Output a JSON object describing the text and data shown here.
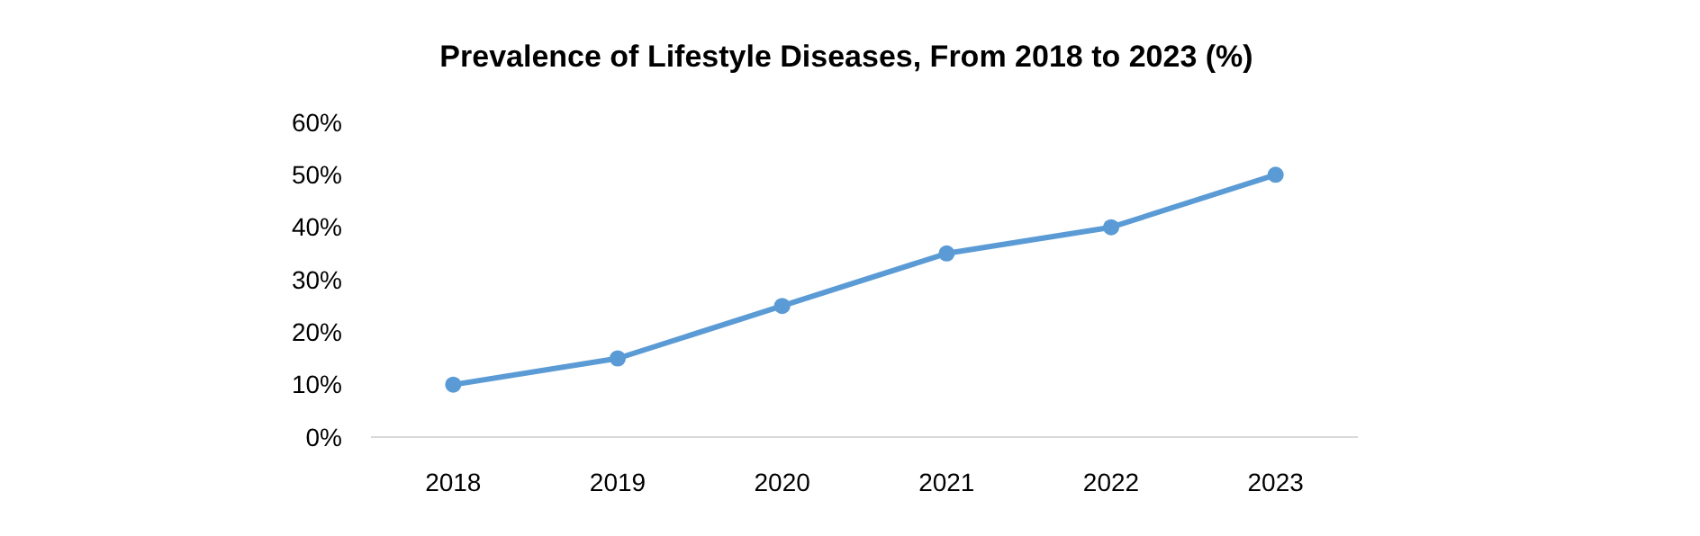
{
  "chart_data": {
    "type": "line",
    "title": "Prevalence of Lifestyle Diseases, From 2018 to 2023 (%)",
    "categories": [
      "2018",
      "2019",
      "2020",
      "2021",
      "2022",
      "2023"
    ],
    "series": [
      {
        "color": "#5b9bd5",
        "values": [
          10,
          15,
          25,
          35,
          40,
          50
        ]
      }
    ],
    "ylim": [
      0,
      60
    ],
    "yticks": [
      {
        "value": 0,
        "label": "0%"
      },
      {
        "value": 10,
        "label": "10%"
      },
      {
        "value": 20,
        "label": "20%"
      },
      {
        "value": 30,
        "label": "30%"
      },
      {
        "value": 40,
        "label": "40%"
      },
      {
        "value": 50,
        "label": "50%"
      },
      {
        "value": 60,
        "label": "60%"
      }
    ],
    "grid": false,
    "marker": "circle",
    "line_style": "solid"
  }
}
